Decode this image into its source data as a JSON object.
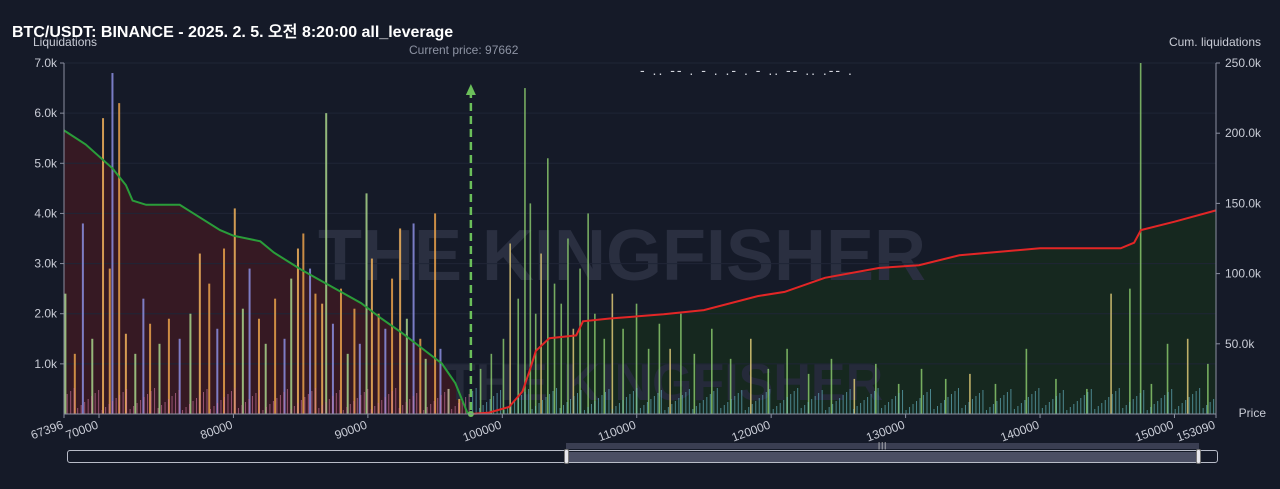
{
  "title": "BTC/USDT: BINANCE - 2025. 2. 5. 오전 8:20:00 all_leverage",
  "y_left_title": "Liquidations",
  "y_right_title": "Cum. liquidations",
  "x_title": "Price",
  "current_price_text": "Current price: 97662",
  "watermark": "THE KINGFISHER.io",
  "garbled_text": "- .. -- . - . .- . -  .. -- .. .-- .",
  "colors": {
    "background": "#151a28",
    "short_cum_line": "#2a9d3a",
    "long_cum_line": "#e32626",
    "short_fill": "#3a1a22",
    "long_fill": "#16291f",
    "current_price_line": "#6bbf5a"
  },
  "chart_data": {
    "type": "bar",
    "current_price": 97662,
    "xlim": [
      67396,
      153090
    ],
    "x_tick_labels": [
      "67396",
      "70000",
      "80000",
      "90000",
      "100000",
      "110000",
      "120000",
      "130000",
      "140000",
      "150000",
      "153090"
    ],
    "x_ticks": [
      67396,
      70000,
      80000,
      90000,
      100000,
      110000,
      120000,
      130000,
      140000,
      150000,
      153090
    ],
    "y_left": {
      "ylim": [
        0,
        7000
      ],
      "tick_labels": [
        "1.0k",
        "2.0k",
        "3.0k",
        "4.0k",
        "5.0k",
        "6.0k",
        "7.0k"
      ],
      "ticks": [
        1000,
        2000,
        3000,
        4000,
        5000,
        6000,
        7000
      ]
    },
    "y_right": {
      "ylim": [
        0,
        250000
      ],
      "tick_labels": [
        "50.0k",
        "100.0k",
        "150.0k",
        "200.0k",
        "250.0k"
      ],
      "ticks": [
        50000,
        100000,
        150000,
        200000,
        250000
      ]
    },
    "series": [
      {
        "role": "short-cumulative",
        "axis": "right",
        "points": [
          [
            67396,
            202000
          ],
          [
            69000,
            192000
          ],
          [
            71000,
            175000
          ],
          [
            72000,
            163000
          ],
          [
            72500,
            152000
          ],
          [
            73500,
            149000
          ],
          [
            76000,
            149000
          ],
          [
            77000,
            143000
          ],
          [
            79000,
            131000
          ],
          [
            80000,
            127000
          ],
          [
            82000,
            123000
          ],
          [
            83000,
            115000
          ],
          [
            85000,
            103000
          ],
          [
            86500,
            95000
          ],
          [
            88000,
            87000
          ],
          [
            89500,
            79000
          ],
          [
            91000,
            68000
          ],
          [
            92500,
            58000
          ],
          [
            94000,
            47000
          ],
          [
            95500,
            36000
          ],
          [
            96500,
            22000
          ],
          [
            97400,
            1000
          ],
          [
            97662,
            0
          ]
        ]
      },
      {
        "role": "long-cumulative",
        "axis": "right",
        "points": [
          [
            97662,
            0
          ],
          [
            99000,
            1000
          ],
          [
            100500,
            5000
          ],
          [
            101500,
            16000
          ],
          [
            102000,
            30000
          ],
          [
            102500,
            45000
          ],
          [
            103500,
            54000
          ],
          [
            105500,
            56000
          ],
          [
            106000,
            66000
          ],
          [
            108000,
            68000
          ],
          [
            112000,
            71000
          ],
          [
            115000,
            74000
          ],
          [
            119000,
            84000
          ],
          [
            121000,
            87000
          ],
          [
            124000,
            97000
          ],
          [
            128000,
            104000
          ],
          [
            131000,
            106000
          ],
          [
            134000,
            113000
          ],
          [
            140000,
            118000
          ],
          [
            146000,
            118000
          ],
          [
            147000,
            122000
          ],
          [
            147500,
            131000
          ],
          [
            150000,
            137000
          ],
          [
            153090,
            145000
          ]
        ]
      },
      {
        "role": "bars-short",
        "axis": "left",
        "points": [
          [
            67500,
            2400
          ],
          [
            68200,
            1200
          ],
          [
            68800,
            3800
          ],
          [
            69500,
            1500
          ],
          [
            70300,
            5900
          ],
          [
            70800,
            2900
          ],
          [
            71000,
            6800
          ],
          [
            71500,
            6200
          ],
          [
            72000,
            1600
          ],
          [
            72700,
            1200
          ],
          [
            73300,
            2300
          ],
          [
            73800,
            1800
          ],
          [
            74500,
            1400
          ],
          [
            75200,
            1900
          ],
          [
            76000,
            1500
          ],
          [
            76800,
            2000
          ],
          [
            77500,
            3200
          ],
          [
            78200,
            2600
          ],
          [
            78800,
            1700
          ],
          [
            79300,
            3300
          ],
          [
            80100,
            4100
          ],
          [
            80700,
            2100
          ],
          [
            81200,
            2900
          ],
          [
            81900,
            1900
          ],
          [
            82400,
            1400
          ],
          [
            83100,
            2300
          ],
          [
            83800,
            1500
          ],
          [
            84300,
            2700
          ],
          [
            84800,
            3300
          ],
          [
            85200,
            3600
          ],
          [
            85700,
            2900
          ],
          [
            86100,
            2400
          ],
          [
            86600,
            2200
          ],
          [
            86900,
            6000
          ],
          [
            87400,
            1800
          ],
          [
            88000,
            2500
          ],
          [
            88500,
            1200
          ],
          [
            89000,
            2100
          ],
          [
            89400,
            1400
          ],
          [
            89900,
            4400
          ],
          [
            90300,
            3100
          ],
          [
            90800,
            2000
          ],
          [
            91300,
            1700
          ],
          [
            91800,
            2700
          ],
          [
            92400,
            3700
          ],
          [
            92900,
            1900
          ],
          [
            93400,
            3800
          ],
          [
            93900,
            1500
          ],
          [
            94300,
            1100
          ],
          [
            95000,
            4000
          ],
          [
            95400,
            1300
          ],
          [
            96000,
            500
          ],
          [
            96800,
            300
          ]
        ]
      },
      {
        "role": "bars-long",
        "axis": "left",
        "points": [
          [
            98400,
            900
          ],
          [
            99200,
            1200
          ],
          [
            100100,
            1500
          ],
          [
            100600,
            3400
          ],
          [
            101200,
            2300
          ],
          [
            101700,
            6500
          ],
          [
            102100,
            4200
          ],
          [
            102500,
            2000
          ],
          [
            102900,
            3200
          ],
          [
            103400,
            5100
          ],
          [
            103900,
            2600
          ],
          [
            104400,
            2200
          ],
          [
            104900,
            3500
          ],
          [
            105300,
            1700
          ],
          [
            105800,
            2900
          ],
          [
            106400,
            4000
          ],
          [
            106900,
            2000
          ],
          [
            107600,
            1500
          ],
          [
            108200,
            2400
          ],
          [
            109000,
            1700
          ],
          [
            110000,
            2200
          ],
          [
            110900,
            1300
          ],
          [
            111700,
            1800
          ],
          [
            112500,
            1300
          ],
          [
            113300,
            2000
          ],
          [
            114300,
            1200
          ],
          [
            115600,
            1700
          ],
          [
            117000,
            1100
          ],
          [
            118500,
            1500
          ],
          [
            119800,
            900
          ],
          [
            121200,
            1300
          ],
          [
            122800,
            800
          ],
          [
            124500,
            1100
          ],
          [
            126200,
            700
          ],
          [
            127800,
            1000
          ],
          [
            129500,
            600
          ],
          [
            131200,
            900
          ],
          [
            133000,
            700
          ],
          [
            134800,
            800
          ],
          [
            136700,
            600
          ],
          [
            139000,
            1300
          ],
          [
            141200,
            700
          ],
          [
            143500,
            500
          ],
          [
            145300,
            2400
          ],
          [
            146700,
            2500
          ],
          [
            147500,
            7000
          ],
          [
            148300,
            600
          ],
          [
            149500,
            1400
          ],
          [
            151000,
            1500
          ],
          [
            152500,
            1000
          ]
        ]
      }
    ]
  }
}
